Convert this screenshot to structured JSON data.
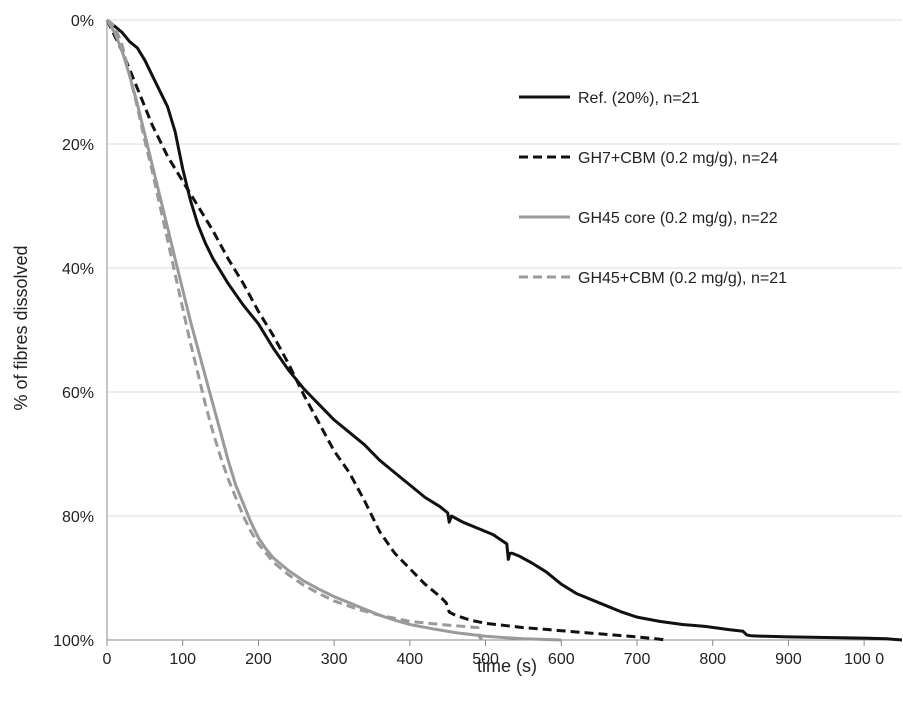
{
  "chart_data": {
    "type": "line",
    "title": "",
    "xlabel": "time (s)",
    "ylabel": "% of fibres dissolved",
    "xlim": [
      0,
      1050
    ],
    "ylim": [
      0,
      100
    ],
    "y_inverted": true,
    "x_ticks": [
      {
        "value": 0,
        "label": "0"
      },
      {
        "value": 100,
        "label": "100"
      },
      {
        "value": 200,
        "label": "200"
      },
      {
        "value": 300,
        "label": "300"
      },
      {
        "value": 400,
        "label": "400"
      },
      {
        "value": 500,
        "label": "500"
      },
      {
        "value": 600,
        "label": "600"
      },
      {
        "value": 700,
        "label": "700"
      },
      {
        "value": 800,
        "label": "800"
      },
      {
        "value": 900,
        "label": "900"
      },
      {
        "value": 1000,
        "label": "100 0"
      }
    ],
    "y_ticks": [
      {
        "value": 0,
        "label": "0%"
      },
      {
        "value": 20,
        "label": "20%"
      },
      {
        "value": 40,
        "label": "40%"
      },
      {
        "value": 60,
        "label": "60%"
      },
      {
        "value": 80,
        "label": "80%"
      },
      {
        "value": 100,
        "label": "100%"
      }
    ],
    "grid": "horizontal",
    "legend_position": "top-right",
    "series": [
      {
        "name": "Ref. (20%), n=21",
        "color": "#111111",
        "dash": "solid",
        "x": [
          0,
          10,
          20,
          30,
          40,
          50,
          60,
          70,
          80,
          90,
          100,
          110,
          120,
          130,
          140,
          160,
          180,
          200,
          220,
          240,
          260,
          280,
          300,
          320,
          340,
          360,
          380,
          400,
          420,
          440,
          450,
          452,
          455,
          470,
          490,
          510,
          528,
          530,
          532,
          535,
          545,
          560,
          580,
          600,
          620,
          650,
          680,
          700,
          730,
          760,
          790,
          820,
          840,
          845,
          850,
          870,
          900,
          950,
          1000,
          1030,
          1050
        ],
        "y": [
          0,
          1,
          2,
          3.5,
          4.5,
          6.5,
          9,
          11.5,
          14,
          18,
          24,
          29,
          33,
          36,
          38.5,
          42.5,
          46,
          49,
          53,
          56.5,
          59.5,
          62,
          64.5,
          66.5,
          68.5,
          71,
          73,
          75,
          77,
          78.5,
          79.5,
          81,
          80,
          81,
          82,
          83,
          84.5,
          87,
          86,
          86,
          86.5,
          87.5,
          89,
          91,
          92.5,
          94,
          95.5,
          96.3,
          97,
          97.5,
          97.8,
          98.3,
          98.6,
          99.2,
          99.3,
          99.4,
          99.5,
          99.6,
          99.7,
          99.8,
          100
        ]
      },
      {
        "name": "GH7+CBM (0.2 mg/g), n=24",
        "color": "#111111",
        "dash": "dashed",
        "x": [
          0,
          20,
          40,
          60,
          80,
          100,
          120,
          140,
          160,
          180,
          200,
          220,
          240,
          260,
          280,
          300,
          320,
          340,
          360,
          380,
          400,
          420,
          440,
          448,
          452,
          460,
          480,
          500,
          550,
          600,
          650,
          700,
          740
        ],
        "y": [
          0,
          5,
          11,
          17,
          22,
          26,
          30,
          34,
          38.5,
          42.5,
          47,
          51,
          55.5,
          60.5,
          65,
          69.5,
          73,
          77.5,
          82.5,
          86,
          88.5,
          91,
          93,
          94,
          95.5,
          96,
          96.8,
          97.3,
          98,
          98.5,
          99,
          99.5,
          100
        ]
      },
      {
        "name": "GH45 core (0.2 mg/g), n=22",
        "color": "#9a9a9a",
        "dash": "solid",
        "x": [
          0,
          10,
          20,
          30,
          40,
          50,
          60,
          70,
          80,
          90,
          100,
          110,
          120,
          130,
          140,
          150,
          160,
          170,
          180,
          190,
          200,
          210,
          220,
          240,
          260,
          280,
          300,
          320,
          340,
          360,
          380,
          400,
          430,
          460,
          500,
          550,
          600
        ],
        "y": [
          0,
          2,
          5,
          9,
          13.5,
          18.5,
          23.5,
          28.5,
          33.5,
          38.5,
          43.5,
          48.5,
          53,
          57.5,
          62,
          66.5,
          71,
          75,
          78,
          81,
          83.5,
          85.3,
          86.8,
          88.8,
          90.5,
          91.8,
          93,
          94,
          95,
          96,
          96.8,
          97.5,
          98.2,
          98.8,
          99.4,
          99.8,
          100
        ]
      },
      {
        "name": "GH45+CBM (0.2 mg/g), n=21",
        "color": "#9a9a9a",
        "dash": "dashed",
        "x": [
          0,
          10,
          20,
          30,
          40,
          50,
          60,
          70,
          80,
          90,
          100,
          110,
          120,
          130,
          140,
          150,
          160,
          170,
          180,
          190,
          200,
          210,
          220,
          240,
          260,
          280,
          300,
          330,
          360,
          400,
          450,
          490,
          492,
          495
        ],
        "y": [
          0,
          1,
          4,
          9,
          14,
          19.5,
          24.5,
          30,
          35.5,
          41,
          46.5,
          52,
          57,
          62,
          66.5,
          70.5,
          74,
          77,
          80,
          82.5,
          84.5,
          86,
          87.5,
          89.5,
          91.2,
          92.5,
          93.7,
          95,
          96,
          97,
          97.6,
          98,
          99.5,
          100
        ]
      }
    ]
  }
}
